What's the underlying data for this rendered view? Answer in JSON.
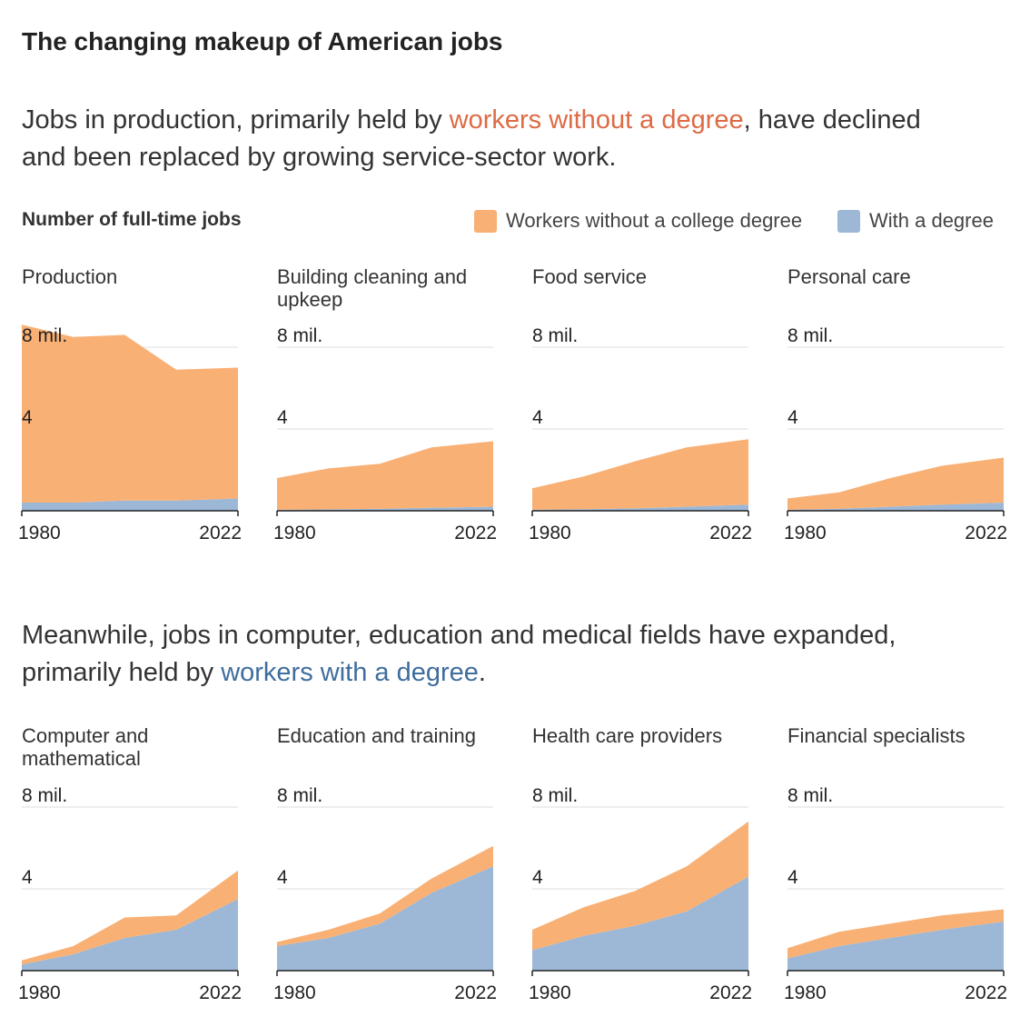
{
  "title": "The changing makeup of American jobs",
  "subtitle_1": [
    "Jobs in production, primarily held by ",
    "workers without a degree",
    ", have declined and been replaced by growing service-sector work."
  ],
  "subtitle_2": [
    "Meanwhile, jobs in computer, education and medical fields have expanded, primarily held by ",
    "workers with a degree",
    "."
  ],
  "y_label": "Number of full-time jobs",
  "chart_data": [
    {
      "type": "area",
      "title": "Production",
      "x": [
        1980,
        1990,
        2000,
        2010,
        2022
      ],
      "xlim": [
        1980,
        2022
      ],
      "xticks": [
        1980,
        2022
      ],
      "ylim": [
        0,
        8
      ],
      "yticks": [
        4,
        {
          "value": 8,
          "label": "8 mil."
        }
      ],
      "grid": true,
      "series": [
        {
          "name": "Workers without a college degree",
          "color": "#f9b074",
          "values": [
            8.7,
            8.1,
            8.1,
            6.4,
            6.4
          ]
        },
        {
          "name": "With a degree",
          "color": "#9cb8d6",
          "values": [
            0.4,
            0.4,
            0.5,
            0.5,
            0.6
          ]
        }
      ]
    },
    {
      "type": "area",
      "title": "Building cleaning and upkeep",
      "x": [
        1980,
        1990,
        2000,
        2010,
        2022
      ],
      "xlim": [
        1980,
        2022
      ],
      "xticks": [
        1980,
        2022
      ],
      "ylim": [
        0,
        8
      ],
      "yticks": [
        4,
        {
          "value": 8,
          "label": "8 mil."
        }
      ],
      "grid": true,
      "series": [
        {
          "name": "Workers without a college degree",
          "color": "#f9b074",
          "values": [
            1.55,
            2.0,
            2.2,
            2.95,
            3.2
          ]
        },
        {
          "name": "With a degree",
          "color": "#9cb8d6",
          "values": [
            0.05,
            0.07,
            0.1,
            0.15,
            0.2
          ]
        }
      ]
    },
    {
      "type": "area",
      "title": "Food service",
      "x": [
        1980,
        1990,
        2000,
        2010,
        2022
      ],
      "xlim": [
        1980,
        2022
      ],
      "xticks": [
        1980,
        2022
      ],
      "ylim": [
        0,
        8
      ],
      "yticks": [
        4,
        {
          "value": 8,
          "label": "8 mil."
        }
      ],
      "grid": true,
      "series": [
        {
          "name": "Workers without a college degree",
          "color": "#f9b074",
          "values": [
            1.05,
            1.6,
            2.3,
            2.9,
            3.2
          ]
        },
        {
          "name": "With a degree",
          "color": "#9cb8d6",
          "values": [
            0.05,
            0.08,
            0.12,
            0.2,
            0.3
          ]
        }
      ]
    },
    {
      "type": "area",
      "title": "Personal care",
      "x": [
        1980,
        1990,
        2000,
        2010,
        2022
      ],
      "xlim": [
        1980,
        2022
      ],
      "xticks": [
        1980,
        2022
      ],
      "ylim": [
        0,
        8
      ],
      "yticks": [
        4,
        {
          "value": 8,
          "label": "8 mil."
        }
      ],
      "grid": true,
      "series": [
        {
          "name": "Workers without a college degree",
          "color": "#f9b074",
          "values": [
            0.55,
            0.8,
            1.4,
            1.9,
            2.2
          ]
        },
        {
          "name": "With a degree",
          "color": "#9cb8d6",
          "values": [
            0.05,
            0.1,
            0.2,
            0.3,
            0.4
          ]
        }
      ]
    },
    {
      "type": "area",
      "title": "Computer and mathematical",
      "x": [
        1980,
        1990,
        2000,
        2010,
        2022
      ],
      "xlim": [
        1980,
        2022
      ],
      "xticks": [
        1980,
        2022
      ],
      "ylim": [
        0,
        8
      ],
      "yticks": [
        4,
        {
          "value": 8,
          "label": "8 mil."
        }
      ],
      "grid": true,
      "series": [
        {
          "name": "Workers without a college degree",
          "color": "#f9b074",
          "values": [
            0.2,
            0.4,
            1.0,
            0.7,
            1.4
          ]
        },
        {
          "name": "With a degree",
          "color": "#9cb8d6",
          "values": [
            0.3,
            0.8,
            1.6,
            2.0,
            3.5
          ]
        }
      ]
    },
    {
      "type": "area",
      "title": "Education and training",
      "x": [
        1980,
        1990,
        2000,
        2010,
        2022
      ],
      "xlim": [
        1980,
        2022
      ],
      "xticks": [
        1980,
        2022
      ],
      "ylim": [
        0,
        8
      ],
      "yticks": [
        4,
        {
          "value": 8,
          "label": "8 mil."
        }
      ],
      "grid": true,
      "series": [
        {
          "name": "Workers without a college degree",
          "color": "#f9b074",
          "values": [
            0.2,
            0.4,
            0.5,
            0.7,
            1.0
          ]
        },
        {
          "name": "With a degree",
          "color": "#9cb8d6",
          "values": [
            1.2,
            1.6,
            2.3,
            3.8,
            5.1
          ]
        }
      ]
    },
    {
      "type": "area",
      "title": "Health care providers",
      "x": [
        1980,
        1990,
        2000,
        2010,
        2022
      ],
      "xlim": [
        1980,
        2022
      ],
      "xticks": [
        1980,
        2022
      ],
      "ylim": [
        0,
        8
      ],
      "yticks": [
        4,
        {
          "value": 8,
          "label": "8 mil."
        }
      ],
      "grid": true,
      "series": [
        {
          "name": "Workers without a college degree",
          "color": "#f9b074",
          "values": [
            1.0,
            1.4,
            1.7,
            2.2,
            2.7
          ]
        },
        {
          "name": "With a degree",
          "color": "#9cb8d6",
          "values": [
            1.0,
            1.7,
            2.2,
            2.9,
            4.6
          ]
        }
      ]
    },
    {
      "type": "area",
      "title": "Financial specialists",
      "x": [
        1980,
        1990,
        2000,
        2010,
        2022
      ],
      "xlim": [
        1980,
        2022
      ],
      "xticks": [
        1980,
        2022
      ],
      "ylim": [
        0,
        8
      ],
      "yticks": [
        4,
        {
          "value": 8,
          "label": "8 mil."
        }
      ],
      "grid": true,
      "series": [
        {
          "name": "Workers without a college degree",
          "color": "#f9b074",
          "values": [
            0.5,
            0.7,
            0.7,
            0.7,
            0.6
          ]
        },
        {
          "name": "With a degree",
          "color": "#9cb8d6",
          "values": [
            0.6,
            1.2,
            1.6,
            2.0,
            2.4
          ]
        }
      ]
    }
  ]
}
